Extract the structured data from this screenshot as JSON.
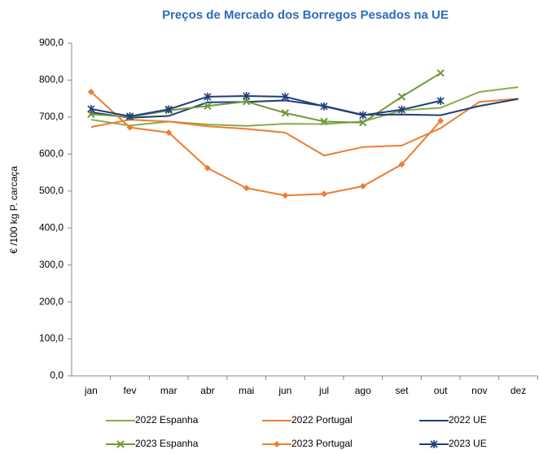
{
  "chart_data": {
    "type": "line",
    "title": "Preços de Mercado dos Borregos Pesados na UE",
    "y_label": "€ /100 kg P. carcaça",
    "categories": [
      "jan",
      "fev",
      "mar",
      "abr",
      "mai",
      "jun",
      "jul",
      "ago",
      "set",
      "out",
      "nov",
      "dez"
    ],
    "ylim": [
      0,
      900
    ],
    "yticks": [
      {
        "value": 0,
        "label": "0,0"
      },
      {
        "value": 100,
        "label": "100,0"
      },
      {
        "value": 200,
        "label": "200,0"
      },
      {
        "value": 300,
        "label": "300,0"
      },
      {
        "value": 400,
        "label": "400,0"
      },
      {
        "value": 500,
        "label": "500,0"
      },
      {
        "value": 600,
        "label": "600,0"
      },
      {
        "value": 700,
        "label": "700,0"
      },
      {
        "value": 800,
        "label": "800,0"
      },
      {
        "value": 900,
        "label": "900,0"
      }
    ],
    "grid": false,
    "legend": "bottom",
    "series": [
      {
        "name": "2022 Espanha",
        "color": "#86ad4a",
        "marker": "none",
        "values": [
          693,
          677,
          688,
          680,
          676,
          682,
          681,
          688,
          718,
          725,
          768,
          781
        ]
      },
      {
        "name": "2022 Portugal",
        "color": "#ed7d31",
        "marker": "none",
        "values": [
          673,
          693,
          688,
          675,
          668,
          658,
          596,
          619,
          623,
          670,
          741,
          750
        ]
      },
      {
        "name": "2022 UE",
        "color": "#1f3e7c",
        "marker": "none",
        "values": [
          713,
          698,
          703,
          740,
          741,
          745,
          730,
          706,
          707,
          705,
          730,
          749
        ]
      },
      {
        "name": "2023 Espanha",
        "color": "#6f9a3a",
        "marker": "x",
        "values": [
          708,
          700,
          718,
          730,
          742,
          711,
          688,
          685,
          755,
          819,
          null,
          null
        ]
      },
      {
        "name": "2023 Portugal",
        "color": "#ed7d31",
        "marker": "diamond",
        "values": [
          768,
          672,
          658,
          562,
          508,
          488,
          492,
          513,
          572,
          690,
          null,
          null
        ]
      },
      {
        "name": "2023 UE",
        "color": "#1f3e7c",
        "marker": "star",
        "values": [
          722,
          702,
          721,
          755,
          757,
          755,
          729,
          705,
          720,
          744,
          null,
          null
        ]
      }
    ]
  }
}
